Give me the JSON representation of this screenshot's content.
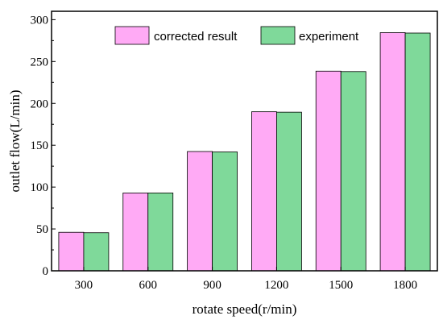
{
  "chart_data": {
    "type": "bar",
    "xlabel": "rotate speed(r/min)",
    "ylabel": "outlet flow(L/min)",
    "categories": [
      "300",
      "600",
      "900",
      "1200",
      "1500",
      "1800"
    ],
    "series": [
      {
        "name": "corrected result",
        "values": [
          46,
          93,
          142.5,
          190,
          238.5,
          284.5
        ],
        "color": "#ffaaf5"
      },
      {
        "name": "experiment",
        "values": [
          45.5,
          93,
          142,
          189.5,
          238,
          284
        ],
        "color": "#7fd99a"
      }
    ],
    "ylim": [
      0,
      310
    ],
    "yticks": [
      0,
      50,
      100,
      150,
      200,
      250,
      300
    ],
    "grid": false,
    "legend": "top"
  }
}
